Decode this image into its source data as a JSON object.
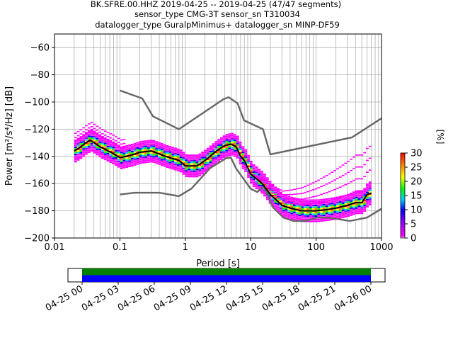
{
  "chart_data": [
    {
      "type": "heatmap",
      "title_lines": [
        "BK.SFRE.00.HHZ   2019-04-25 -- 2019-04-25  (47/47 segments)",
        "sensor_type CMG-3T sensor_sn T310034",
        "datalogger_type GuralpMinimus+ datalogger_sn MINP-DF59"
      ],
      "xlabel": "Period [s]",
      "ylabel": "Power [m²/s⁴/Hz] [dB]",
      "xscale": "log",
      "xlim": [
        0.01,
        1000
      ],
      "ylim": [
        -200,
        -50
      ],
      "xticks": [
        {
          "v": 0.01,
          "label": "0.01"
        },
        {
          "v": 0.1,
          "label": "0.1"
        },
        {
          "v": 1,
          "label": "1"
        },
        {
          "v": 10,
          "label": "10"
        },
        {
          "v": 100,
          "label": "100"
        },
        {
          "v": 1000,
          "label": "1000"
        }
      ],
      "yticks": [
        -200,
        -180,
        -160,
        -140,
        -120,
        -100,
        -80,
        -60
      ],
      "grid": true,
      "colorbar": {
        "label": "[%]",
        "range": [
          0,
          30
        ],
        "ticks": [
          0,
          5,
          10,
          15,
          20,
          25,
          30
        ],
        "colors": [
          "#ffffff",
          "#ff00ff",
          "#0000ff",
          "#00c8ff",
          "#00ff00",
          "#ffff00",
          "#ff8000",
          "#ff0000"
        ]
      },
      "series": [
        {
          "role": "noise-model-high",
          "color": "#666666",
          "x": [
            0.1,
            0.22,
            0.32,
            0.8,
            3.8,
            4.6,
            6.3,
            7.9,
            15.4,
            20,
            354.8,
            1000
          ],
          "y": [
            -91.5,
            -97.4,
            -110.5,
            -120,
            -98,
            -96.5,
            -101,
            -113.5,
            -120,
            -138.5,
            -126,
            -112
          ]
        },
        {
          "role": "noise-model-low",
          "color": "#666666",
          "x": [
            0.1,
            0.17,
            0.4,
            0.8,
            1.24,
            2.4,
            4.3,
            5,
            6,
            10,
            12.6,
            15.9,
            21.9,
            31.6,
            45,
            70,
            101,
            154,
            328,
            600,
            1000
          ],
          "y": [
            -168,
            -166.7,
            -166.7,
            -169.2,
            -163.7,
            -148.6,
            -141.1,
            -141.1,
            -149,
            -163.8,
            -166.2,
            -162.1,
            -177.5,
            -185,
            -187.5,
            -187.5,
            -185,
            -185,
            -187.5,
            -185,
            -178.5
          ]
        },
        {
          "role": "mode",
          "color": "#000000",
          "x": [
            0.02,
            0.025,
            0.03,
            0.035,
            0.05,
            0.08,
            0.1,
            0.15,
            0.2,
            0.3,
            0.5,
            0.8,
            1,
            1.5,
            2,
            3,
            4,
            5,
            6,
            7,
            8,
            10,
            15,
            20,
            30,
            40,
            60,
            100,
            150,
            200,
            300,
            400,
            500,
            600,
            700
          ],
          "y": [
            -136,
            -133,
            -130,
            -128,
            -133,
            -138,
            -141,
            -139,
            -137,
            -136,
            -140,
            -143,
            -147,
            -147,
            -143,
            -136,
            -132,
            -131,
            -133,
            -140,
            -143,
            -153,
            -160,
            -168,
            -176,
            -178,
            -180,
            -180,
            -179,
            -178,
            -176,
            -174,
            -174,
            -168,
            -167
          ]
        }
      ]
    },
    {
      "type": "timeline",
      "xlim": [
        "04-25 00",
        "04-26 00"
      ],
      "ticks": [
        "04-25 00",
        "04-25 03",
        "04-25 06",
        "04-25 09",
        "04-25 12",
        "04-25 15",
        "04-25 18",
        "04-25 21",
        "04-26 00"
      ],
      "bars": [
        {
          "start_h": 0,
          "end_h": 24,
          "color": "#008000"
        },
        {
          "start_h": 0,
          "end_h": 24,
          "color": "#0000ff"
        }
      ]
    }
  ]
}
